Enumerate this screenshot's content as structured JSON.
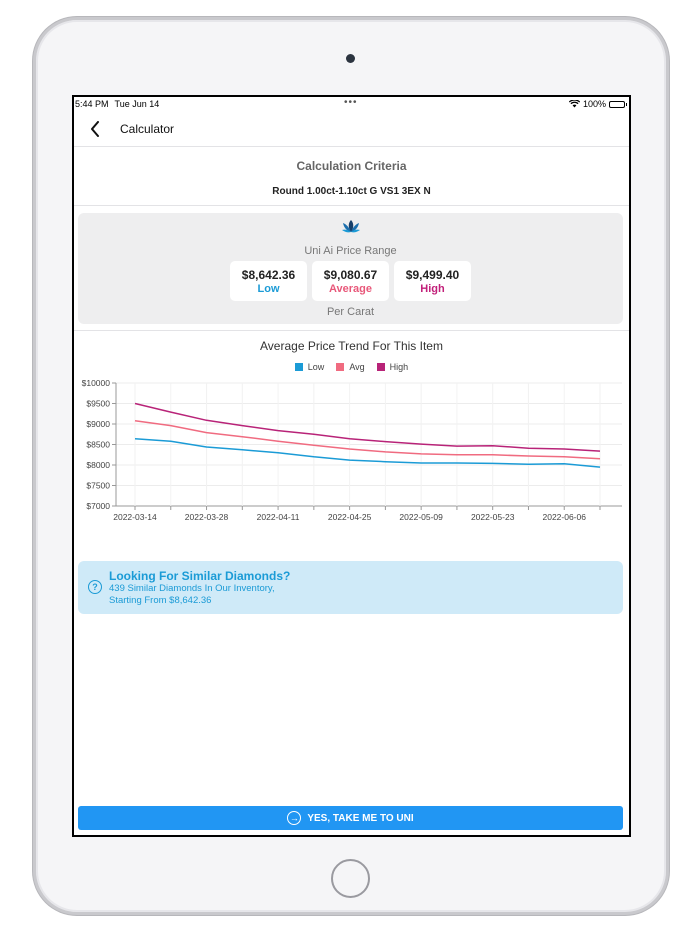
{
  "status_bar": {
    "time": "5:44 PM",
    "date": "Tue Jun 14",
    "dots": "•••",
    "battery": "100%"
  },
  "nav": {
    "title": "Calculator",
    "back_icon": "chevron-left-icon"
  },
  "criteria": {
    "title": "Calculation Criteria",
    "value": "Round 1.00ct-1.10ct G VS1 3EX N"
  },
  "price_range": {
    "title": "Uni Ai Price Range",
    "per_carat": "Per Carat",
    "low": {
      "amount": "$8,642.36",
      "label": "Low",
      "color": "#1b9bd6"
    },
    "average": {
      "amount": "$9,080.67",
      "label": "Average",
      "color": "#e8587a"
    },
    "high": {
      "amount": "$9,499.40",
      "label": "High",
      "color": "#c2207a"
    }
  },
  "chart": {
    "title": "Average Price Trend For This Item"
  },
  "chart_data": {
    "type": "line",
    "x": [
      "2022-03-14",
      "2022-03-21",
      "2022-03-28",
      "2022-04-04",
      "2022-04-11",
      "2022-04-18",
      "2022-04-25",
      "2022-05-02",
      "2022-05-09",
      "2022-05-16",
      "2022-05-23",
      "2022-05-30",
      "2022-06-06",
      "2022-06-13"
    ],
    "xticks": [
      "2022-03-14",
      "2022-03-28",
      "2022-04-11",
      "2022-04-25",
      "2022-05-09",
      "2022-05-23",
      "2022-06-06"
    ],
    "yticks": [
      "$10000",
      "$9500",
      "$9000",
      "$8500",
      "$8000",
      "$7500",
      "$7000"
    ],
    "ylim": [
      7000,
      10000
    ],
    "grid": true,
    "legend_position": "top",
    "series": [
      {
        "name": "Low",
        "color": "#1b9bd6",
        "values": [
          8640,
          8580,
          8440,
          8370,
          8300,
          8200,
          8120,
          8080,
          8050,
          8050,
          8040,
          8020,
          8030,
          7950
        ]
      },
      {
        "name": "Avg",
        "color": "#f06b80",
        "values": [
          9080,
          8960,
          8790,
          8690,
          8580,
          8480,
          8390,
          8320,
          8270,
          8250,
          8250,
          8220,
          8200,
          8150
        ]
      },
      {
        "name": "High",
        "color": "#b82378",
        "values": [
          9500,
          9290,
          9090,
          8960,
          8840,
          8750,
          8640,
          8570,
          8510,
          8460,
          8470,
          8410,
          8390,
          8340
        ]
      }
    ]
  },
  "similar": {
    "icon": "question-circle-icon",
    "title": "Looking For Similar Diamonds?",
    "line1": "439 Similar Diamonds In Our Inventory,",
    "line2": "Starting From $8,642.36"
  },
  "cta": {
    "label": "YES, TAKE ME TO UNI",
    "icon": "arrow-right-circle-icon"
  }
}
